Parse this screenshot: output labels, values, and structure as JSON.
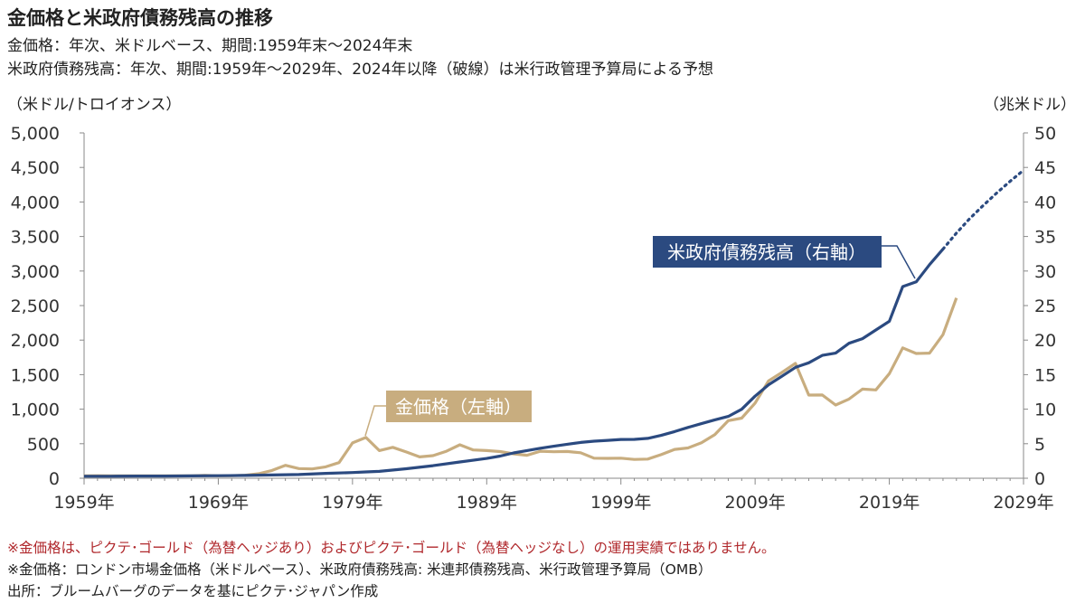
{
  "title": "金価格と米政府債務残高の推移",
  "subtitle1": "金価格：年次、米ドルベース、期間:1959年末～2024年末",
  "subtitle2": "米政府債務残高：年次、期間:1959年～2029年、2024年以降（破線）は米行政管理予算局による予想",
  "notes": [
    "※金価格は、ピクテ･ゴールド（為替ヘッジあり）およびピクテ･ゴールド（為替ヘッジなし）の運用実績ではありません。",
    "※金価格：ロンドン市場金価格（米ドルベース）、米政府債務残高: 米連邦債務残高、米行政管理予算局（OMB）",
    "出所：ブルームバーグのデータを基にピクテ･ジャパン作成"
  ],
  "chart_data": {
    "type": "line",
    "ylabel_left": "（米ドル/トロイオンス）",
    "ylabel_right": "（兆米ドル）",
    "xlim": [
      1959,
      2029
    ],
    "ylim_left": [
      0,
      5000
    ],
    "ylim_right": [
      0,
      50
    ],
    "x_ticks": [
      "1959年",
      "1969年",
      "1979年",
      "1989年",
      "1999年",
      "2009年",
      "2019年",
      "2029年"
    ],
    "y_ticks_left": [
      "0",
      "500",
      "1,000",
      "1,500",
      "2,000",
      "2,500",
      "3,000",
      "3,500",
      "4,000",
      "4,500",
      "5,000"
    ],
    "y_ticks_right": [
      "0",
      "5",
      "10",
      "15",
      "20",
      "25",
      "30",
      "35",
      "40",
      "45",
      "50"
    ],
    "grid": false,
    "colors": {
      "gold": "#c8ad7f",
      "debt": "#2b4a80"
    },
    "series": [
      {
        "name": "金価格（左軸）",
        "axis": "left",
        "x": [
          1959,
          1960,
          1961,
          1962,
          1963,
          1964,
          1965,
          1966,
          1967,
          1968,
          1969,
          1970,
          1971,
          1972,
          1973,
          1974,
          1975,
          1976,
          1977,
          1978,
          1979,
          1980,
          1981,
          1982,
          1983,
          1984,
          1985,
          1986,
          1987,
          1988,
          1989,
          1990,
          1991,
          1992,
          1993,
          1994,
          1995,
          1996,
          1997,
          1998,
          1999,
          2000,
          2001,
          2002,
          2003,
          2004,
          2005,
          2006,
          2007,
          2008,
          2009,
          2010,
          2011,
          2012,
          2013,
          2014,
          2015,
          2016,
          2017,
          2018,
          2019,
          2020,
          2021,
          2022,
          2023,
          2024
        ],
        "values": [
          35,
          36,
          35,
          35,
          35,
          35,
          35,
          35,
          35,
          41,
          35,
          37,
          43,
          65,
          112,
          187,
          140,
          135,
          165,
          226,
          512,
          590,
          400,
          448,
          381,
          309,
          327,
          391,
          484,
          410,
          401,
          386,
          353,
          333,
          391,
          383,
          387,
          369,
          290,
          288,
          290,
          272,
          277,
          342,
          417,
          438,
          513,
          632,
          834,
          870,
          1088,
          1410,
          1531,
          1664,
          1204,
          1206,
          1060,
          1146,
          1291,
          1279,
          1515,
          1888,
          1806,
          1812,
          2078,
          2610
        ]
      },
      {
        "name": "米政府債務残高（右軸）",
        "axis": "right",
        "x": [
          1959,
          1961,
          1963,
          1965,
          1967,
          1969,
          1971,
          1973,
          1975,
          1977,
          1979,
          1980,
          1981,
          1983,
          1985,
          1987,
          1989,
          1990,
          1991,
          1992,
          1993,
          1994,
          1995,
          1996,
          1997,
          1998,
          1999,
          2000,
          2001,
          2002,
          2003,
          2004,
          2005,
          2006,
          2007,
          2008,
          2009,
          2010,
          2011,
          2012,
          2013,
          2014,
          2015,
          2016,
          2017,
          2018,
          2019,
          2020,
          2021,
          2022,
          2023
        ],
        "values": [
          0.29,
          0.29,
          0.31,
          0.32,
          0.34,
          0.37,
          0.41,
          0.47,
          0.54,
          0.71,
          0.83,
          0.91,
          0.99,
          1.38,
          1.82,
          2.35,
          2.87,
          3.21,
          3.67,
          4.0,
          4.35,
          4.64,
          4.92,
          5.18,
          5.37,
          5.48,
          5.61,
          5.63,
          5.77,
          6.2,
          6.76,
          7.35,
          7.91,
          8.45,
          8.95,
          9.99,
          11.88,
          13.53,
          14.76,
          16.05,
          16.72,
          17.79,
          18.12,
          19.54,
          20.21,
          21.46,
          22.72,
          27.75,
          28.43,
          30.93,
          33.17
        ]
      },
      {
        "name": "米政府債務残高（右軸）予想",
        "axis": "right",
        "dashed": true,
        "x": [
          2023,
          2024,
          2025,
          2026,
          2027,
          2028,
          2029
        ],
        "values": [
          33.17,
          35.5,
          37.6,
          39.5,
          41.3,
          43.0,
          44.6
        ]
      }
    ],
    "annotations": [
      "米政府債務残高（右軸）",
      "金価格（左軸）"
    ]
  }
}
